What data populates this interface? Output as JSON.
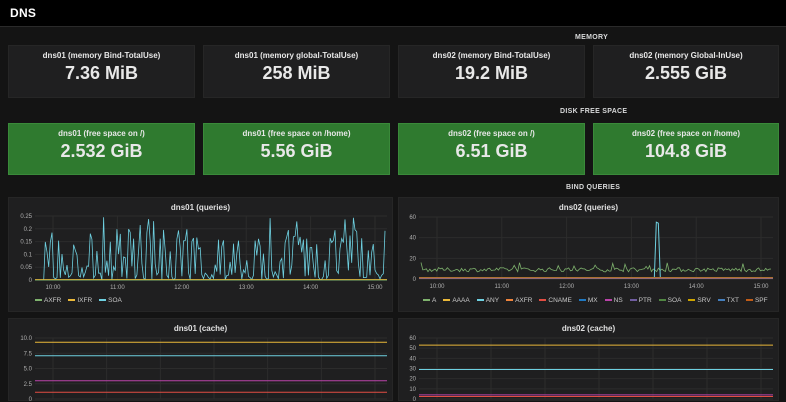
{
  "header": {
    "title": "DNS"
  },
  "sections": {
    "memory": "MEMORY",
    "disk": "DISK FREE SPACE",
    "bind": "BIND QUERIES"
  },
  "memory": [
    {
      "title": "dns01 (memory Bind-TotalUse)",
      "value": "7.36 MiB"
    },
    {
      "title": "dns01 (memory global-TotalUse)",
      "value": "258 MiB"
    },
    {
      "title": "dns02 (memory Bind-TotalUse)",
      "value": "19.2 MiB"
    },
    {
      "title": "dns02 (memory Global-InUse)",
      "value": "2.555 GiB"
    }
  ],
  "disk": [
    {
      "title": "dns01 (free space on /)",
      "value": "2.532 GiB"
    },
    {
      "title": "dns01 (free space on /home)",
      "value": "5.56 GiB"
    },
    {
      "title": "dns02 (free space on /)",
      "value": "6.51 GiB"
    },
    {
      "title": "dns02 (free space on /home)",
      "value": "104.8 GiB"
    }
  ],
  "colors": {
    "green": "#7eb26d",
    "yellow": "#eab839",
    "cyan": "#6ed0e0",
    "orange": "#ef843c",
    "red": "#e24d42",
    "blue": "#1f78c1",
    "purple": "#ba43a9",
    "pink": "#705da0",
    "teal": "#508642"
  },
  "chart_data": [
    {
      "type": "line",
      "title": "dns01 (queries)",
      "x_ticks": [
        "10:00",
        "11:00",
        "12:00",
        "13:00",
        "14:00",
        "15:00"
      ],
      "ylim": [
        0,
        0.25
      ],
      "y_ticks": [
        "0.25",
        "0.2",
        "0.15",
        "0.1",
        "0.05",
        "0"
      ],
      "series": [
        {
          "name": "AXFR",
          "color": "#7eb26d"
        },
        {
          "name": "IXFR",
          "color": "#eab839"
        },
        {
          "name": "SOA",
          "color": "#6ed0e0"
        }
      ]
    },
    {
      "type": "line",
      "title": "dns02 (queries)",
      "x_ticks": [
        "10:00",
        "11:00",
        "12:00",
        "13:00",
        "14:00",
        "15:00"
      ],
      "ylim": [
        0,
        60
      ],
      "y_ticks": [
        "60",
        "40",
        "20",
        "0"
      ],
      "series": [
        {
          "name": "A",
          "color": "#7eb26d"
        },
        {
          "name": "AAAA",
          "color": "#eab839"
        },
        {
          "name": "ANY",
          "color": "#6ed0e0"
        },
        {
          "name": "AXFR",
          "color": "#ef843c"
        },
        {
          "name": "CNAME",
          "color": "#e24d42"
        },
        {
          "name": "MX",
          "color": "#1f78c1"
        },
        {
          "name": "NS",
          "color": "#ba43a9"
        },
        {
          "name": "PTR",
          "color": "#705da0"
        },
        {
          "name": "SOA",
          "color": "#508642"
        },
        {
          "name": "SRV",
          "color": "#cca300"
        },
        {
          "name": "TXT",
          "color": "#447ebc"
        },
        {
          "name": "SPF",
          "color": "#c15c17"
        }
      ]
    },
    {
      "type": "line",
      "title": "dns01 (cache)",
      "ylim": [
        0,
        10
      ],
      "y_ticks": [
        "10.0",
        "7.5",
        "5.0",
        "2.5",
        "0"
      ],
      "series": [
        {
          "color": "#eab839",
          "value": 9.3
        },
        {
          "color": "#6ed0e0",
          "value": 7.1
        },
        {
          "color": "#ba43a9",
          "value": 3.0
        },
        {
          "color": "#e24d42",
          "value": 1.1
        }
      ]
    },
    {
      "type": "line",
      "title": "dns02 (cache)",
      "ylim": [
        0,
        60
      ],
      "y_ticks": [
        "60",
        "50",
        "40",
        "30",
        "20",
        "10",
        "0"
      ],
      "series": [
        {
          "color": "#eab839",
          "value": 53
        },
        {
          "color": "#6ed0e0",
          "value": 29
        },
        {
          "color": "#ba43a9",
          "value": 4
        },
        {
          "color": "#e24d42",
          "value": 2.5
        }
      ]
    }
  ]
}
